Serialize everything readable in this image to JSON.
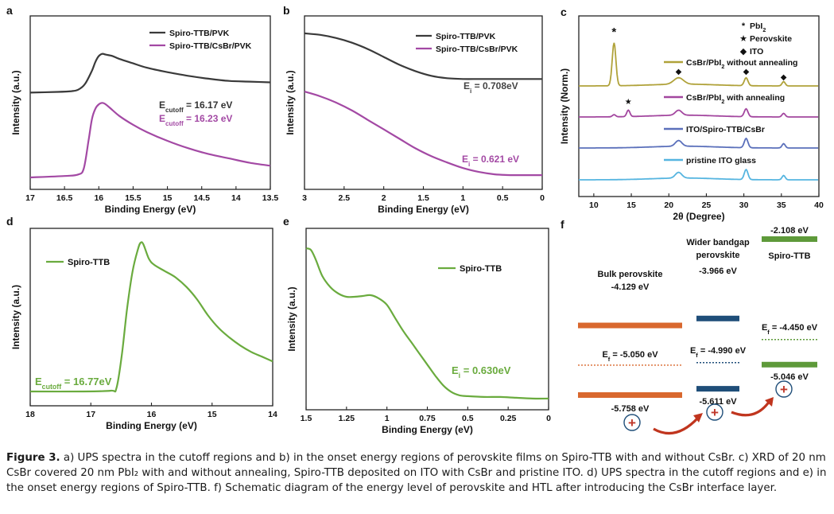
{
  "colors": {
    "black": "#3a3a3a",
    "purple": "#a349a4",
    "green": "#6aab3e",
    "olive": "#b0a23a",
    "magenta": "#a3479f",
    "blue": "#5b70bb",
    "lightblue": "#56b5e0",
    "orange": "#d9682e",
    "navy": "#1f4e79",
    "dgreen": "#5e9a3a"
  },
  "chart_data": [
    {
      "panel": "a",
      "type": "line",
      "xlabel": "Binding Energy (eV)",
      "ylabel": "Intensity (a.u.)",
      "xlim": [
        17,
        13.5
      ],
      "xticks": [
        "17",
        "16.5",
        "16",
        "15.5",
        "15",
        "14.5",
        "14",
        "13.5"
      ],
      "legend": [
        "Spiro-TTB/PVK",
        "Spiro-TTB/CsBr/PVK"
      ],
      "annotations": [
        {
          "main": "E",
          "sub": "cutoff",
          "rest": " = 16.17 eV"
        },
        {
          "main": "E",
          "sub": "cutoff",
          "rest": " = 16.23 eV"
        }
      ],
      "series": [
        {
          "name": "Spiro-TTB/PVK",
          "x": [
            17,
            16.6,
            16.4,
            16.3,
            16.2,
            16.1,
            16.05,
            16.0,
            15.95,
            15.9,
            15.8,
            15.7,
            15.5,
            15.3,
            15.0,
            14.7,
            14.4,
            14.1,
            13.8,
            13.5
          ],
          "y": [
            0.58,
            0.585,
            0.59,
            0.6,
            0.64,
            0.73,
            0.79,
            0.83,
            0.845,
            0.84,
            0.83,
            0.81,
            0.78,
            0.75,
            0.72,
            0.695,
            0.675,
            0.66,
            0.655,
            0.65
          ]
        },
        {
          "name": "Spiro-TTB/CsBr/PVK",
          "x": [
            17,
            16.5,
            16.3,
            16.22,
            16.15,
            16.1,
            16.05,
            16.0,
            15.95,
            15.9,
            15.8,
            15.7,
            15.5,
            15.3,
            15.0,
            14.7,
            14.4,
            14.1,
            13.8,
            13.5
          ],
          "y": [
            0.0,
            0.01,
            0.02,
            0.06,
            0.25,
            0.4,
            0.47,
            0.5,
            0.51,
            0.5,
            0.46,
            0.42,
            0.36,
            0.31,
            0.25,
            0.2,
            0.16,
            0.13,
            0.1,
            0.08
          ]
        }
      ]
    },
    {
      "panel": "b",
      "type": "line",
      "xlabel": "Binding Energy (eV)",
      "ylabel": "Intensity (a.u.)",
      "xlim": [
        3,
        0
      ],
      "xticks": [
        "3",
        "2.5",
        "2",
        "1.5",
        "1",
        "0.5",
        "0"
      ],
      "legend": [
        "Spiro-TTB/PVK",
        "Spiro-TTB/CsBr/PVK"
      ],
      "annotations": [
        {
          "main": "E",
          "sub": "i",
          "rest": " = 0.708eV"
        },
        {
          "main": "E",
          "sub": "i",
          "rest": " = 0.621 eV"
        }
      ],
      "series": [
        {
          "name": "Spiro-TTB/PVK",
          "x": [
            3,
            2.8,
            2.6,
            2.4,
            2.2,
            2.0,
            1.8,
            1.6,
            1.4,
            1.2,
            1.0,
            0.8,
            0.6,
            0.4,
            0.2,
            0
          ],
          "y": [
            0.93,
            0.92,
            0.9,
            0.87,
            0.83,
            0.78,
            0.73,
            0.69,
            0.66,
            0.645,
            0.64,
            0.64,
            0.64,
            0.64,
            0.64,
            0.64
          ]
        },
        {
          "name": "Spiro-TTB/CsBr/PVK",
          "x": [
            3,
            2.8,
            2.6,
            2.4,
            2.2,
            2.0,
            1.8,
            1.6,
            1.4,
            1.2,
            1.0,
            0.8,
            0.6,
            0.4,
            0.2,
            0
          ],
          "y": [
            0.56,
            0.53,
            0.49,
            0.44,
            0.38,
            0.32,
            0.26,
            0.2,
            0.15,
            0.11,
            0.075,
            0.05,
            0.035,
            0.03,
            0.03,
            0.03
          ]
        }
      ]
    },
    {
      "panel": "c",
      "type": "line",
      "xlabel": "2θ (Degree)",
      "ylabel": "Intensity (Norm.)",
      "xlim": [
        8,
        40
      ],
      "xticks": [
        "10",
        "15",
        "20",
        "25",
        "30",
        "35",
        "40"
      ],
      "symbol_legend": [
        {
          "sym": "*",
          "main": "PbI",
          "sub": "2"
        },
        {
          "sym": "★",
          "main": "Perovskite",
          "sub": ""
        },
        {
          "sym": "◆",
          "main": "ITO",
          "sub": ""
        }
      ],
      "series": [
        {
          "name": "CsBr/PbI2 without annealing",
          "label_main": "CsBr/PbI",
          "label_sub": "2",
          "label_rest": " without annealing",
          "offset": 3,
          "peaks": [
            [
              12.7,
              1.2,
              0.35
            ],
            [
              21.3,
              0.18,
              0.9
            ],
            [
              30.3,
              0.22,
              0.35
            ],
            [
              35.3,
              0.12,
              0.3
            ]
          ]
        },
        {
          "name": "CsBr/PbI2 with annealing",
          "label_main": "CsBr/PbI",
          "label_sub": "2",
          "label_rest": " with annealing",
          "offset": 2,
          "peaks": [
            [
              14.6,
              0.18,
              0.3
            ],
            [
              12.7,
              0.06,
              0.3
            ],
            [
              21.3,
              0.14,
              0.6
            ],
            [
              30.3,
              0.22,
              0.35
            ],
            [
              35.3,
              0.1,
              0.3
            ]
          ]
        },
        {
          "name": "ITO/Spiro-TTB/CsBr",
          "label_main": "ITO/Spiro-TTB/CsBr",
          "label_sub": "",
          "label_rest": "",
          "offset": 1,
          "peaks": [
            [
              21.3,
              0.16,
              0.6
            ],
            [
              30.3,
              0.26,
              0.35
            ],
            [
              35.3,
              0.12,
              0.3
            ]
          ]
        },
        {
          "name": "pristine ITO glass",
          "label_main": "pristine ITO glass",
          "label_sub": "",
          "label_rest": "",
          "offset": 0,
          "peaks": [
            [
              21.3,
              0.16,
              0.6
            ],
            [
              30.3,
              0.28,
              0.35
            ],
            [
              35.3,
              0.12,
              0.3
            ]
          ]
        }
      ],
      "markers": [
        {
          "sym": "*",
          "x": 12.7
        },
        {
          "sym": "◆",
          "x": 21.3
        },
        {
          "sym": "◆",
          "x": 30.3
        },
        {
          "sym": "◆",
          "x": 35.3
        },
        {
          "sym": "★",
          "x": 14.6
        }
      ]
    },
    {
      "panel": "d",
      "type": "line",
      "xlabel": "Binding Energy (eV)",
      "ylabel": "Intensity (a.u.)",
      "xlim": [
        18.5,
        14
      ],
      "xticks": [
        "18",
        "17",
        "16",
        "15",
        "14"
      ],
      "legend": [
        "Spiro-TTB"
      ],
      "annotations": [
        {
          "main": "E",
          "sub": "cutoff",
          "rest": " = 16.77eV"
        }
      ],
      "series": [
        {
          "name": "Spiro-TTB",
          "x": [
            18.5,
            17.5,
            17.0,
            16.9,
            16.8,
            16.7,
            16.6,
            16.5,
            16.45,
            16.4,
            16.3,
            16.2,
            16.0,
            15.8,
            15.6,
            15.4,
            15.2,
            15.0,
            14.8,
            14.6,
            14.4,
            14.2,
            14.0
          ],
          "y": [
            0.02,
            0.02,
            0.025,
            0.04,
            0.25,
            0.55,
            0.78,
            0.92,
            0.96,
            0.95,
            0.86,
            0.82,
            0.78,
            0.74,
            0.68,
            0.6,
            0.5,
            0.42,
            0.36,
            0.31,
            0.27,
            0.24,
            0.21
          ]
        }
      ]
    },
    {
      "panel": "e",
      "type": "line",
      "xlabel": "Binding Energy (eV)",
      "ylabel": "Intensity (a.u.)",
      "xlim": [
        1.5,
        0
      ],
      "xticks": [
        "1.5",
        "1.25",
        "1",
        "0.75",
        "0.5",
        "0.25",
        "0"
      ],
      "legend": [
        "Spiro-TTB"
      ],
      "annotations": [
        {
          "main": "E",
          "sub": "i",
          "rest": " = 0.630eV"
        }
      ],
      "series": [
        {
          "name": "Spiro-TTB",
          "x": [
            1.5,
            1.47,
            1.44,
            1.4,
            1.35,
            1.3,
            1.25,
            1.2,
            1.15,
            1.1,
            1.05,
            1.0,
            0.95,
            0.9,
            0.85,
            0.8,
            0.75,
            0.7,
            0.65,
            0.6,
            0.55,
            0.5,
            0.4,
            0.3,
            0.2,
            0.1,
            0
          ],
          "y": [
            0.95,
            0.94,
            0.88,
            0.78,
            0.71,
            0.67,
            0.65,
            0.65,
            0.655,
            0.66,
            0.64,
            0.6,
            0.52,
            0.44,
            0.37,
            0.3,
            0.23,
            0.16,
            0.1,
            0.06,
            0.04,
            0.035,
            0.03,
            0.03,
            0.025,
            0.02,
            0.02
          ]
        }
      ]
    },
    {
      "panel": "f",
      "type": "diagram",
      "groups": [
        {
          "name": "Bulk perovskite",
          "name2": "",
          "cb": "-4.129 eV",
          "ef_main": "E",
          "ef_sub": "f",
          "ef_rest": " = -5.050 eV",
          "vb": "-5.758 eV",
          "cb_val": -4.129,
          "ef_val": -5.05,
          "vb_val": -5.758
        },
        {
          "name": "Wider bandgap",
          "name2": "perovskite",
          "cb": "-3.966 eV",
          "ef_main": "E",
          "ef_sub": "f",
          "ef_rest": " = -4.990 eV",
          "vb": "-5.611 eV",
          "cb_val": -3.966,
          "ef_val": -4.99,
          "vb_val": -5.611
        },
        {
          "name": "Spiro-TTB",
          "name2": "",
          "cb": "-2.108 eV",
          "ef_main": "E",
          "ef_sub": "f",
          "ef_rest": " = -4.450 eV",
          "vb": "-5.046 eV",
          "cb_val": -2.108,
          "ef_val": -4.45,
          "vb_val": -5.046
        }
      ],
      "hole_symbol": "+"
    }
  ],
  "caption": {
    "label": "Figure 3.",
    "text": "a) UPS spectra in the cutoff regions and b) in the onset energy regions of perovskite films on Spiro-TTB with and without CsBr. c) XRD of 20 nm CsBr covered 20 nm PbI₂ with and without annealing, Spiro-TTB deposited on ITO with CsBr and pristine ITO. d) UPS spectra in the cutoff regions and e) in the onset energy regions of Spiro-TTB. f) Schematic diagram of the energy level of perovskite and HTL after introducing the CsBr interface layer."
  }
}
